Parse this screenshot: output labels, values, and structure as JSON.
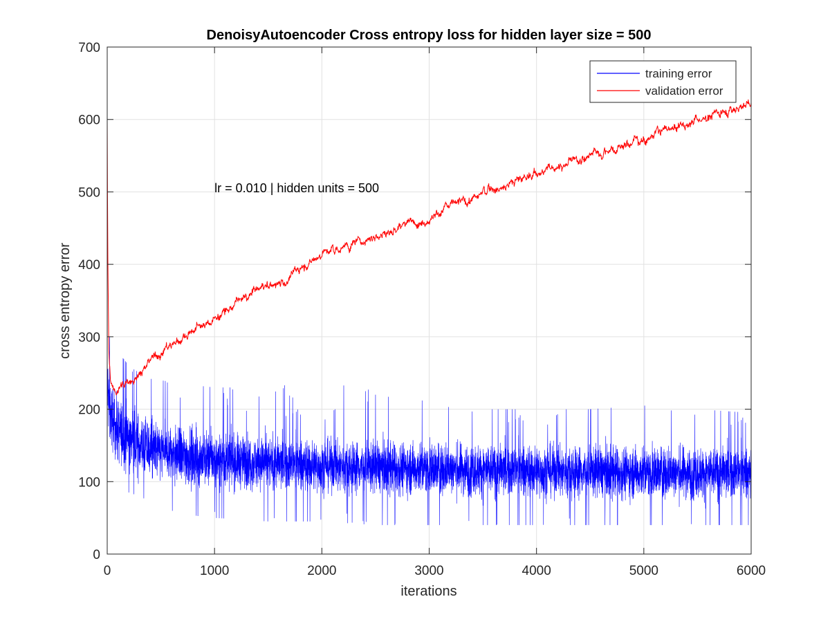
{
  "chart_data": {
    "type": "line",
    "title": "DenoisyAutoencoder Cross entropy loss for hidden layer size = 500",
    "xlabel": "iterations",
    "ylabel": "cross entropy error",
    "xlim": [
      0,
      6000
    ],
    "ylim": [
      0,
      700
    ],
    "xticks": [
      0,
      1000,
      2000,
      3000,
      4000,
      5000,
      6000
    ],
    "yticks": [
      0,
      100,
      200,
      300,
      400,
      500,
      600,
      700
    ],
    "grid": true,
    "legend_position": "top-right",
    "annotation": {
      "text": "lr = 0.010 | hidden units = 500",
      "x": 1000,
      "y": 505
    },
    "series": [
      {
        "name": "training error",
        "color": "#0000ff",
        "noisy": true,
        "x": [
          0,
          20,
          60,
          100,
          200,
          300,
          500,
          700,
          1000,
          1500,
          2000,
          2500,
          3000,
          3500,
          4000,
          4500,
          5000,
          5500,
          6000
        ],
        "trend": [
          240,
          200,
          180,
          170,
          160,
          150,
          140,
          135,
          130,
          125,
          122,
          120,
          118,
          116,
          115,
          114,
          113,
          112,
          112
        ],
        "spread": [
          60,
          55,
          50,
          50,
          50,
          48,
          45,
          45,
          42,
          40,
          40,
          40,
          40,
          40,
          40,
          40,
          40,
          40,
          40
        ],
        "min": [
          150,
          120,
          100,
          90,
          85,
          80,
          65,
          55,
          50,
          45,
          45,
          40,
          40,
          40,
          40,
          40,
          40,
          40,
          40
        ],
        "max": [
          310,
          300,
          290,
          280,
          260,
          250,
          240,
          235,
          230,
          230,
          240,
          225,
          210,
          200,
          200,
          200,
          205,
          200,
          195
        ]
      },
      {
        "name": "validation error",
        "color": "#ff0000",
        "noisy": true,
        "x": [
          0,
          5,
          15,
          30,
          60,
          100,
          150,
          200,
          300,
          400,
          500,
          700,
          900,
          1000,
          1200,
          1400,
          1600,
          1700,
          1800,
          2000,
          2200,
          2500,
          2800,
          3000,
          3200,
          3400,
          3600,
          3800,
          4000,
          4200,
          4400,
          4600,
          4800,
          5000,
          5200,
          5400,
          5600,
          5800,
          6000
        ],
        "values": [
          600,
          420,
          280,
          240,
          225,
          228,
          232,
          236,
          250,
          265,
          280,
          300,
          315,
          325,
          345,
          365,
          375,
          380,
          395,
          415,
          425,
          440,
          455,
          465,
          480,
          490,
          505,
          515,
          525,
          535,
          545,
          555,
          565,
          575,
          585,
          595,
          605,
          615,
          622
        ],
        "noise": 6
      }
    ]
  }
}
